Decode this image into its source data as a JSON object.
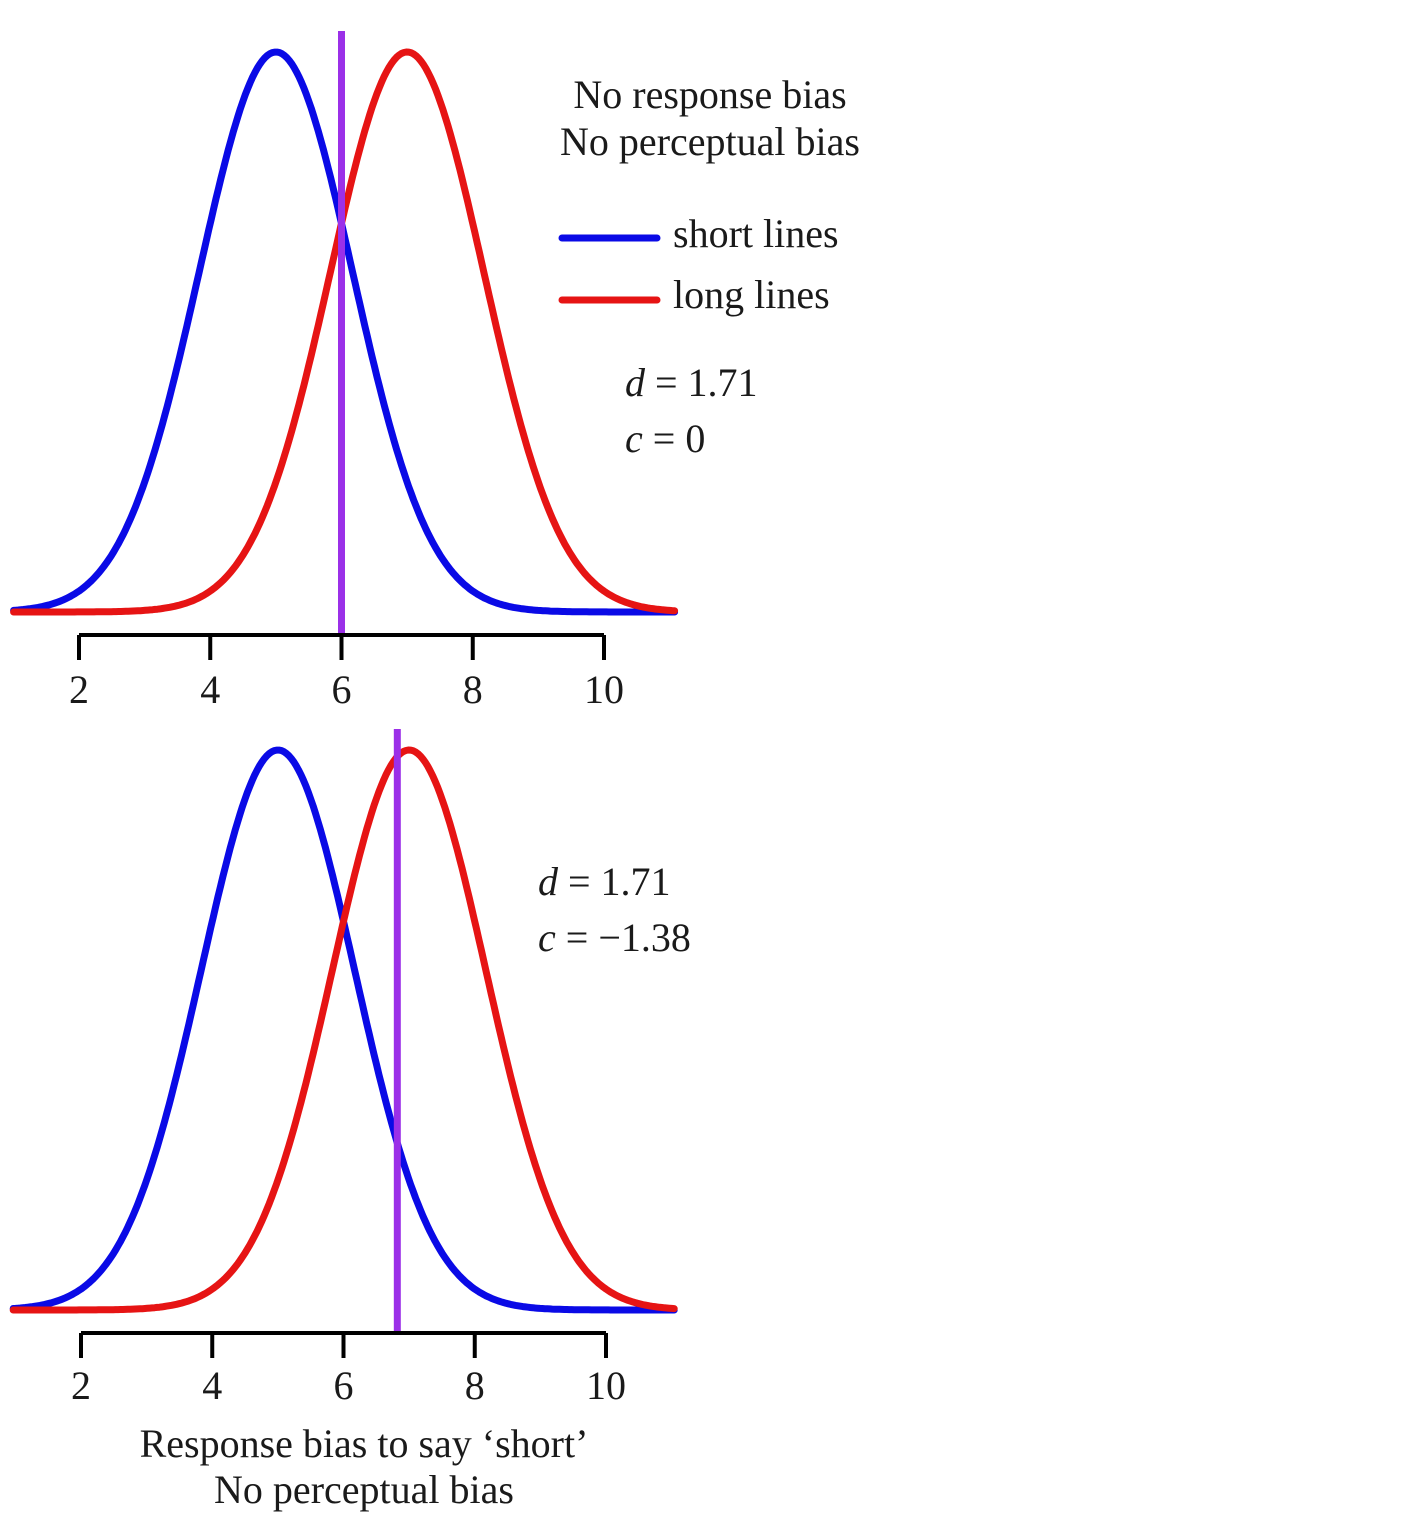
{
  "chart_data": [
    {
      "type": "line",
      "panel": "top",
      "title_lines": [
        "No response bias",
        "No perceptual bias"
      ],
      "xlabel": "",
      "ylabel": "",
      "x_ticks": [
        2,
        4,
        6,
        8,
        10
      ],
      "xlim": [
        1,
        11
      ],
      "grid": false,
      "legend_placement": "top-right",
      "series": [
        {
          "name": "short lines",
          "color": "#0a0ae6",
          "distribution": "normal",
          "mean": 5,
          "sd": 1.17
        },
        {
          "name": "long lines",
          "color": "#e61414",
          "distribution": "normal",
          "mean": 7,
          "sd": 1.17
        }
      ],
      "criterion": {
        "x": 6,
        "color": "#9b30e8"
      },
      "stats": {
        "d_label": "d",
        "d_value": "= 1.71",
        "c_label": "c",
        "c_value": "= 0"
      }
    },
    {
      "type": "line",
      "panel": "bottom",
      "title_lines": [
        "Response bias to say ‘short’",
        "No perceptual bias"
      ],
      "xlabel": "",
      "ylabel": "",
      "x_ticks": [
        2,
        4,
        6,
        8,
        10
      ],
      "xlim": [
        1,
        11
      ],
      "grid": false,
      "series": [
        {
          "name": "short lines",
          "color": "#0a0ae6",
          "distribution": "normal",
          "mean": 5,
          "sd": 1.17
        },
        {
          "name": "long lines",
          "color": "#e61414",
          "distribution": "normal",
          "mean": 7,
          "sd": 1.17
        }
      ],
      "criterion": {
        "x": 6.82,
        "color": "#9b30e8"
      },
      "stats": {
        "d_label": "d",
        "d_value": "= 1.71",
        "c_label": "c",
        "c_value": "= −1.38"
      }
    }
  ]
}
